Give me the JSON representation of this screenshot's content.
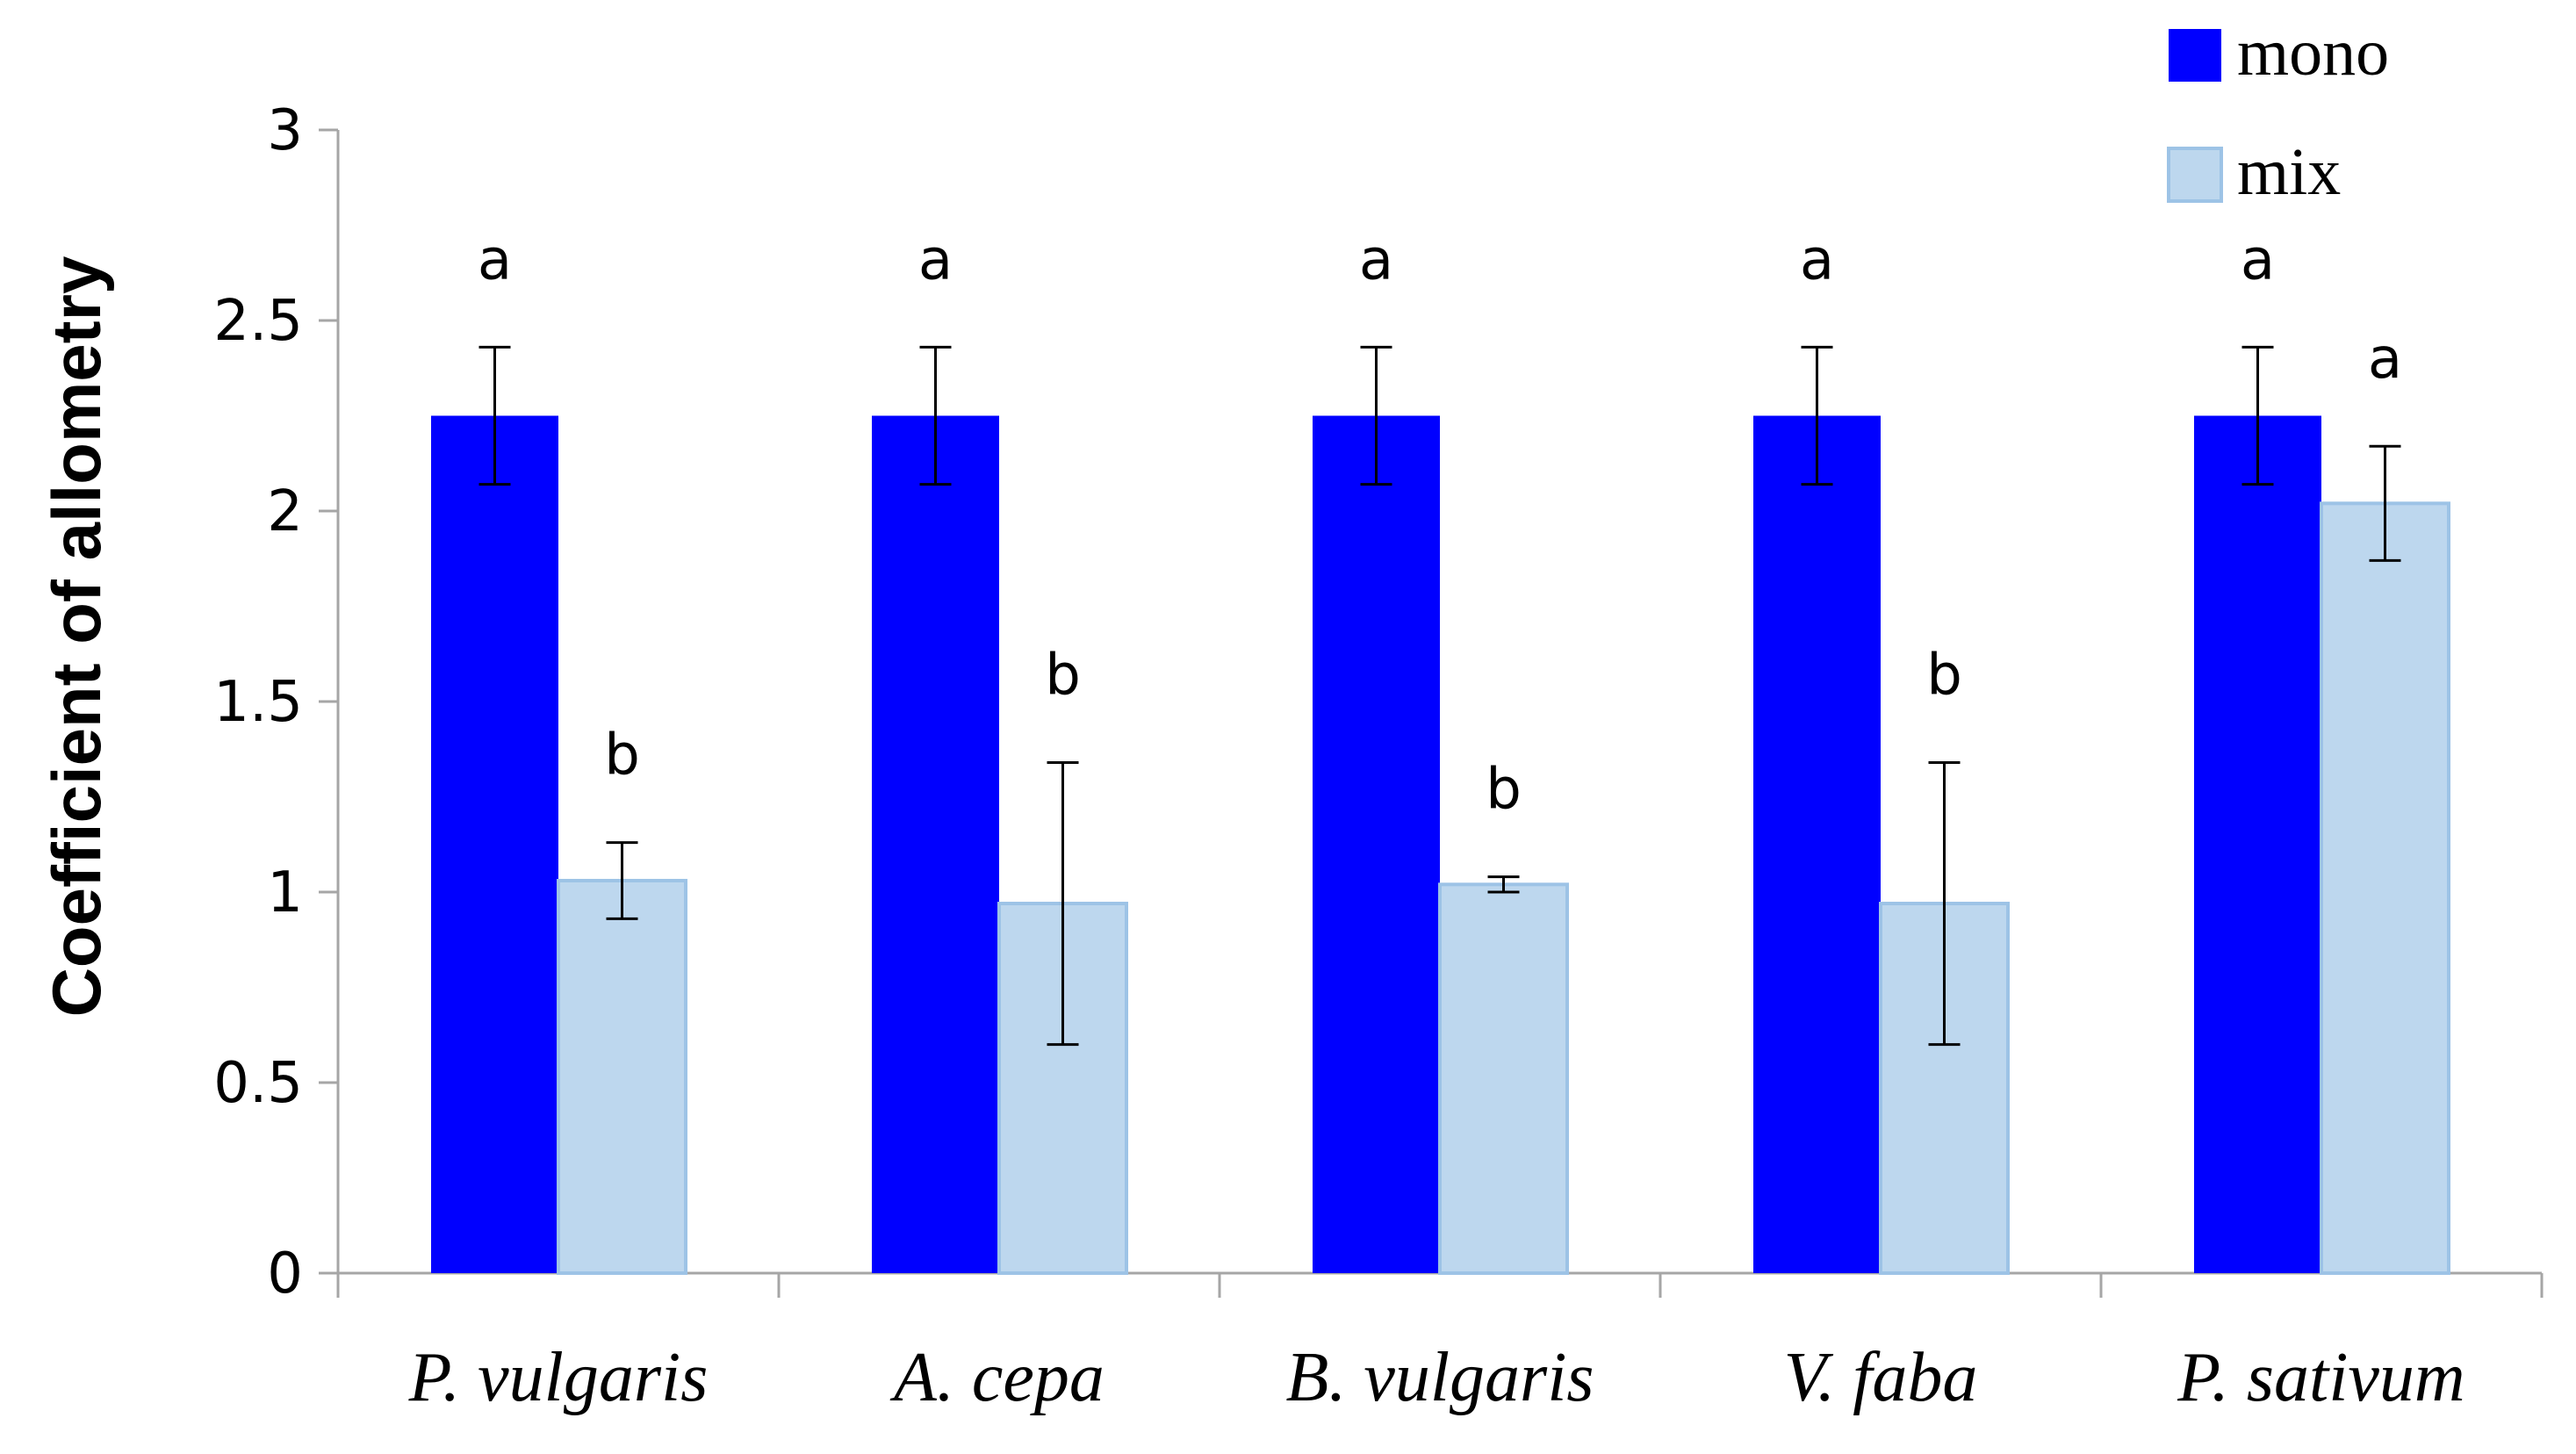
{
  "chart_data": {
    "type": "bar",
    "title": "",
    "xlabel": "",
    "ylabel": "Coefficient of allometry",
    "ylim": [
      0,
      3
    ],
    "yticks": [
      "0",
      "0.5",
      "1",
      "1.5",
      "2",
      "2.5",
      "3"
    ],
    "grid": false,
    "legend_position": "top-right",
    "categories": [
      "P. vulgaris",
      "A. cepa",
      "B. vulgaris",
      "V. faba",
      "P. sativum"
    ],
    "series": [
      {
        "name": "mono",
        "color": "#0000ff",
        "values": [
          2.25,
          2.25,
          2.25,
          2.25,
          2.25
        ],
        "error": [
          0.18,
          0.18,
          0.18,
          0.18,
          0.18
        ],
        "letters": [
          "a",
          "a",
          "a",
          "a",
          "a"
        ]
      },
      {
        "name": "mix",
        "color": "#bdd7ee",
        "values": [
          1.03,
          0.97,
          1.02,
          0.97,
          2.02
        ],
        "error": [
          0.1,
          0.37,
          0.02,
          0.37,
          0.15
        ],
        "letters": [
          "b",
          "b",
          "b",
          "b",
          "a"
        ]
      }
    ]
  }
}
